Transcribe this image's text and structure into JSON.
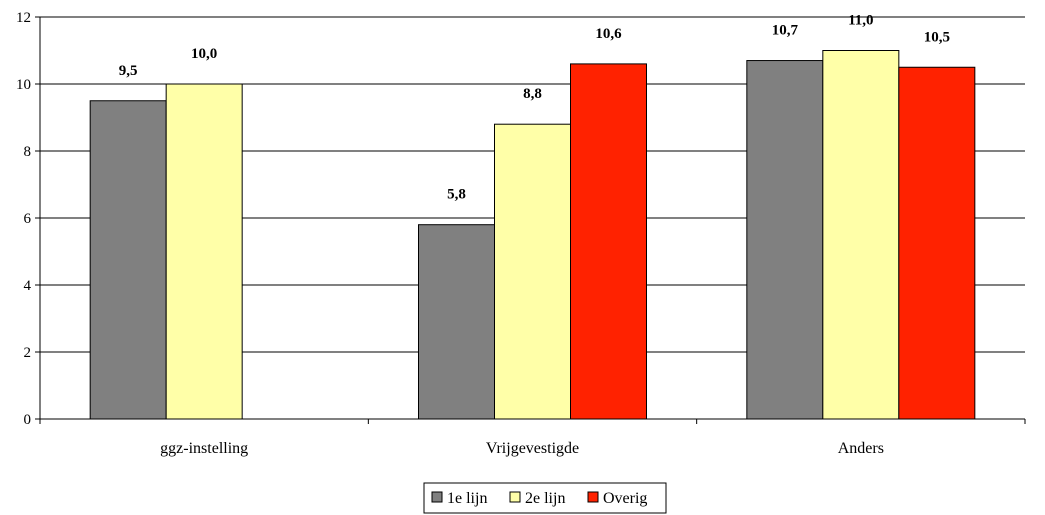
{
  "chart_data": {
    "type": "bar",
    "categories": [
      "ggz-instelling",
      "Vrijgevestigde",
      "Anders"
    ],
    "series": [
      {
        "name": "1e lijn",
        "color": "#808080",
        "values": [
          9.5,
          5.8,
          10.7
        ],
        "labels": [
          "9,5",
          "5,8",
          "10,7"
        ]
      },
      {
        "name": "2e lijn",
        "color": "#FFFFA8",
        "values": [
          10.0,
          8.8,
          11.0
        ],
        "labels": [
          "10,0",
          "8,8",
          "11,0"
        ]
      },
      {
        "name": "Overig",
        "color": "#FF2200",
        "values": [
          null,
          10.6,
          10.5
        ],
        "labels": [
          null,
          "10,6",
          "10,5"
        ]
      }
    ],
    "yticks": [
      "0",
      "2",
      "4",
      "6",
      "8",
      "10",
      "12"
    ],
    "ylim": [
      0,
      12
    ],
    "grid": true,
    "legend_position": "bottom-center"
  }
}
